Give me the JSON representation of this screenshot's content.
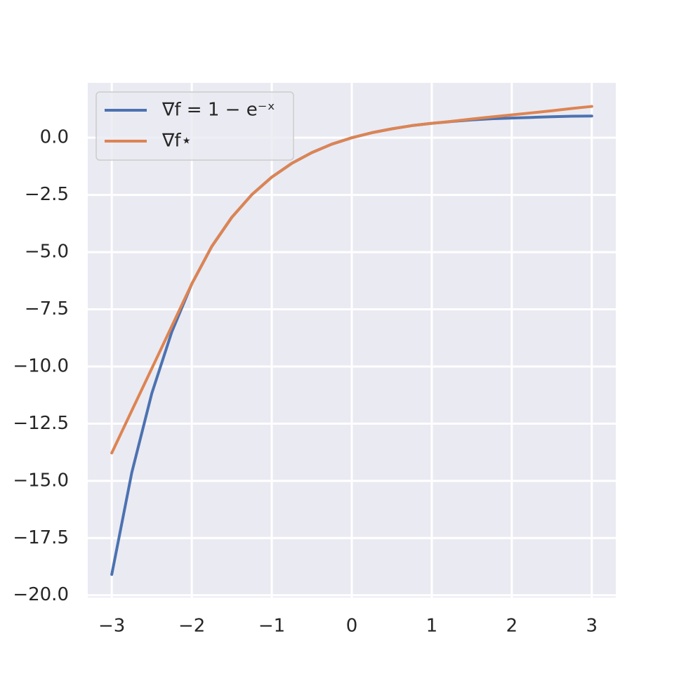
{
  "chart_data": {
    "type": "line",
    "x": [
      -3,
      -2.75,
      -2.5,
      -2.25,
      -2,
      -1.75,
      -1.5,
      -1.25,
      -1,
      -0.75,
      -0.5,
      -0.25,
      0,
      0.25,
      0.5,
      0.75,
      1,
      1.25,
      1.5,
      1.75,
      2,
      2.25,
      2.5,
      2.75,
      3
    ],
    "series": [
      {
        "name": "∇f = 1 − e⁻ˣ",
        "color": "#4c72b0",
        "values": [
          -19.09,
          -14.64,
          -11.18,
          -8.49,
          -6.39,
          -4.75,
          -3.48,
          -2.49,
          -1.72,
          -1.12,
          -0.65,
          -0.28,
          0,
          0.22,
          0.39,
          0.53,
          0.63,
          0.71,
          0.78,
          0.83,
          0.86,
          0.89,
          0.92,
          0.94,
          0.95
        ]
      },
      {
        "name": "∇f⋆",
        "color": "#dd8452",
        "values": [
          -13.78,
          -11.93,
          -10.09,
          -8.24,
          -6.39,
          -4.75,
          -3.48,
          -2.49,
          -1.72,
          -1.12,
          -0.65,
          -0.28,
          0,
          0.22,
          0.39,
          0.53,
          0.63,
          0.72,
          0.82,
          0.91,
          1.0,
          1.09,
          1.18,
          1.28,
          1.37
        ]
      }
    ],
    "xlim": [
      -3.3,
      3.3
    ],
    "ylim": [
      -20.1,
      2.4
    ],
    "xticks": [
      {
        "value": -3,
        "label": "−3"
      },
      {
        "value": -2,
        "label": "−2"
      },
      {
        "value": -1,
        "label": "−1"
      },
      0,
      1,
      2,
      3
    ],
    "yticks": [
      {
        "value": 0,
        "label": "0.0"
      },
      {
        "value": -2.5,
        "label": "−2.5"
      },
      {
        "value": -5,
        "label": "−5.0"
      },
      {
        "value": -7.5,
        "label": "−7.5"
      },
      {
        "value": -10,
        "label": "−10.0"
      },
      {
        "value": -12.5,
        "label": "−12.5"
      },
      {
        "value": -15,
        "label": "−15.0"
      },
      {
        "value": -17.5,
        "label": "−17.5"
      },
      {
        "value": -20,
        "label": "−20.0"
      }
    ],
    "grid": true,
    "legend": "upper left"
  }
}
